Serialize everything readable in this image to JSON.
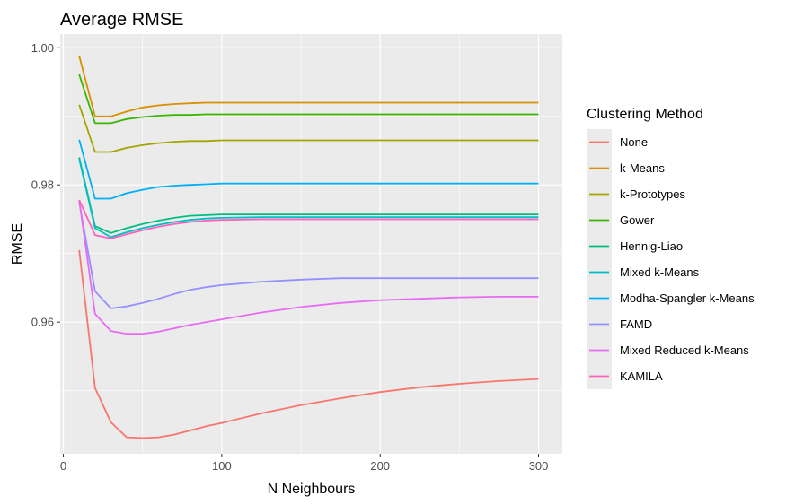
{
  "chart_data": {
    "type": "line",
    "title": "Average RMSE",
    "xlabel": "N Neighbours",
    "ylabel": "RMSE",
    "xlim": [
      -2,
      315
    ],
    "ylim": [
      0.9408,
      1.002
    ],
    "x_ticks": [
      0,
      100,
      200,
      300
    ],
    "x_tick_labels": [
      "0",
      "100",
      "200",
      "300"
    ],
    "y_ticks": [
      0.96,
      0.98,
      1.0
    ],
    "y_tick_labels": [
      "0.96",
      "0.98",
      "1.00"
    ],
    "grid": true,
    "legend": {
      "title": "Clustering Method",
      "position": "right"
    },
    "x": [
      10,
      20,
      30,
      40,
      50,
      60,
      70,
      80,
      90,
      100,
      125,
      150,
      175,
      200,
      225,
      250,
      275,
      300
    ],
    "series": [
      {
        "name": "None",
        "color": "#F8766D",
        "values": [
          0.9705,
          0.9504,
          0.9454,
          0.9432,
          0.9431,
          0.9432,
          0.9436,
          0.9442,
          0.9448,
          0.9453,
          0.9467,
          0.9479,
          0.9489,
          0.9498,
          0.9505,
          0.951,
          0.9514,
          0.9517
        ]
      },
      {
        "name": "k-Means",
        "color": "#D89000",
        "values": [
          0.9988,
          0.99,
          0.99,
          0.9907,
          0.9913,
          0.9916,
          0.9918,
          0.9919,
          0.992,
          0.992,
          0.992,
          0.992,
          0.992,
          0.992,
          0.992,
          0.992,
          0.992,
          0.992
        ]
      },
      {
        "name": "k-Prototypes",
        "color": "#A3A500",
        "values": [
          0.9917,
          0.9848,
          0.9848,
          0.9854,
          0.9858,
          0.9861,
          0.9863,
          0.9864,
          0.9864,
          0.9865,
          0.9865,
          0.9865,
          0.9865,
          0.9865,
          0.9865,
          0.9865,
          0.9865,
          0.9865
        ]
      },
      {
        "name": "Gower",
        "color": "#39B600",
        "values": [
          0.9961,
          0.989,
          0.989,
          0.9896,
          0.9899,
          0.9901,
          0.9902,
          0.9902,
          0.9903,
          0.9903,
          0.9903,
          0.9903,
          0.9903,
          0.9903,
          0.9903,
          0.9903,
          0.9903,
          0.9903
        ]
      },
      {
        "name": "Hennig-Liao",
        "color": "#00BF7D",
        "values": [
          0.984,
          0.974,
          0.973,
          0.9737,
          0.9743,
          0.9748,
          0.9752,
          0.9755,
          0.9756,
          0.9757,
          0.9757,
          0.9757,
          0.9757,
          0.9757,
          0.9757,
          0.9757,
          0.9757,
          0.9757
        ]
      },
      {
        "name": "Mixed k-Means",
        "color": "#00BFC4",
        "values": [
          0.9838,
          0.9737,
          0.9724,
          0.9731,
          0.9737,
          0.9742,
          0.9746,
          0.9749,
          0.9751,
          0.9752,
          0.9753,
          0.9753,
          0.9753,
          0.9753,
          0.9753,
          0.9753,
          0.9753,
          0.9753
        ]
      },
      {
        "name": "Modha-Spangler k-Means",
        "color": "#00B0F6",
        "values": [
          0.9866,
          0.978,
          0.978,
          0.9788,
          0.9793,
          0.9797,
          0.9799,
          0.98,
          0.9801,
          0.9802,
          0.9802,
          0.9802,
          0.9802,
          0.9802,
          0.9802,
          0.9802,
          0.9802,
          0.9802
        ]
      },
      {
        "name": "FAMD",
        "color": "#9590FF",
        "values": [
          0.9775,
          0.9645,
          0.962,
          0.9623,
          0.9628,
          0.9634,
          0.9641,
          0.9647,
          0.9651,
          0.9654,
          0.9659,
          0.9662,
          0.9664,
          0.9664,
          0.9664,
          0.9664,
          0.9664,
          0.9664
        ]
      },
      {
        "name": "Mixed Reduced k-Means",
        "color": "#E76BF3",
        "values": [
          0.9778,
          0.9612,
          0.9587,
          0.9583,
          0.9583,
          0.9586,
          0.9591,
          0.9596,
          0.96,
          0.9604,
          0.9614,
          0.9622,
          0.9628,
          0.9632,
          0.9634,
          0.9636,
          0.9637,
          0.9637
        ]
      },
      {
        "name": "KAMILA",
        "color": "#FF62BC",
        "values": [
          0.9778,
          0.9727,
          0.9722,
          0.9728,
          0.9734,
          0.9739,
          0.9743,
          0.9746,
          0.9748,
          0.9749,
          0.975,
          0.975,
          0.975,
          0.975,
          0.975,
          0.975,
          0.975,
          0.975
        ]
      }
    ]
  },
  "colors": {
    "panel_background": "#EBEBEB",
    "grid_major": "#FFFFFF",
    "tick_text": "#4D4D4D"
  }
}
